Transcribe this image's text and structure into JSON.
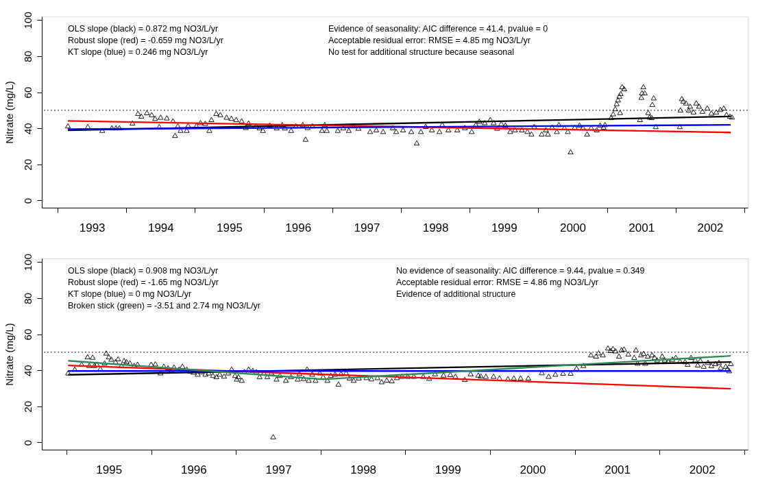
{
  "chart_data": [
    {
      "type": "scatter",
      "ylabel": "Nitrate (mg/L)",
      "annotations": [
        "OLS slope (black) = 0.872 mg NO3/L/yr",
        "Robust slope (red) = -0.659 mg NO3/L/yr",
        "KT slope (blue) = 0.246 mg NO3/L/yr",
        "Evidence of seasonality: AIC difference = 41.4, pvalue = 0",
        "Acceptable residual error: RMSE = 4.85 mg NO3/L/yr",
        "No test for additional structure because seasonal"
      ],
      "xlim": [
        1992.77,
        2003.05
      ],
      "ylim": [
        -4,
        102
      ],
      "xticks": [
        {
          "value": 1993,
          "label": null
        },
        {
          "value": 1994,
          "label": null
        },
        {
          "value": 1995,
          "label": null
        },
        {
          "value": 1996,
          "label": null
        },
        {
          "value": 1997,
          "label": null
        },
        {
          "value": 1998,
          "label": null
        },
        {
          "value": 1999,
          "label": null
        },
        {
          "value": 2000,
          "label": null
        },
        {
          "value": 2001,
          "label": null
        },
        {
          "value": 2002,
          "label": null
        },
        {
          "value": 2003,
          "label": null
        },
        {
          "value": 1993.5,
          "label": "1993"
        },
        {
          "value": 1994.5,
          "label": "1994"
        },
        {
          "value": 1995.5,
          "label": "1995"
        },
        {
          "value": 1996.5,
          "label": "1996"
        },
        {
          "value": 1997.5,
          "label": "1997"
        },
        {
          "value": 1998.5,
          "label": "1998"
        },
        {
          "value": 1999.5,
          "label": "1999"
        },
        {
          "value": 2000.5,
          "label": "2000"
        },
        {
          "value": 2001.5,
          "label": "2001"
        },
        {
          "value": 2002.5,
          "label": "2002"
        }
      ],
      "yticks": [
        0,
        20,
        40,
        60,
        80,
        100
      ],
      "ref_lines": [
        {
          "axis": "y",
          "value": 50,
          "line_style": "dotted",
          "color": "#000000"
        }
      ],
      "series": [
        {
          "type": "scatter",
          "marker": "triangle",
          "color": "#000000",
          "x": [
            1993.15,
            1993.44,
            1993.65,
            1993.79,
            1993.85,
            1993.9,
            1994.09,
            1994.17,
            1994.22,
            1994.3,
            1994.37,
            1994.42,
            1994.48,
            1994.5,
            1994.59,
            1994.68,
            1994.71,
            1994.75,
            1994.79,
            1994.88,
            1994.9,
            1995.02,
            1995.08,
            1995.15,
            1995.21,
            1995.24,
            1995.31,
            1995.37,
            1995.46,
            1995.53,
            1995.6,
            1995.68,
            1995.74,
            1995.78,
            1995.89,
            1995.94,
            1995.99,
            1996.09,
            1996.19,
            1996.27,
            1996.31,
            1996.4,
            1996.47,
            1996.57,
            1996.61,
            1996.64,
            1996.71,
            1996.85,
            1996.89,
            1996.92,
            1997.08,
            1997.16,
            1997.24,
            1997.31,
            1997.38,
            1997.55,
            1997.64,
            1997.74,
            1997.88,
            1997.93,
            1998.03,
            1998.15,
            1998.23,
            1998.29,
            1998.36,
            1998.45,
            1998.56,
            1998.6,
            1998.69,
            1998.82,
            1998.93,
            1999.03,
            1999.09,
            1999.14,
            1999.22,
            1999.3,
            1999.35,
            1999.4,
            1999.46,
            1999.52,
            1999.59,
            1999.66,
            1999.76,
            1999.84,
            1999.9,
            1999.94,
            2000.05,
            2000.11,
            2000.14,
            2000.2,
            2000.27,
            2000.3,
            2000.38,
            2000.43,
            2000.47,
            2000.53,
            2000.6,
            2000.65,
            2000.71,
            2000.77,
            2000.85,
            2000.9,
            2000.95,
            2000.97,
            2001.06,
            2001.09,
            2001.12,
            2001.14,
            2001.16,
            2001.18,
            2001.19,
            2001.2,
            2001.22,
            2001.25,
            2001.48,
            2001.5,
            2001.51,
            2001.53,
            2001.55,
            2001.6,
            2001.62,
            2001.65,
            2001.66,
            2001.68,
            2001.71,
            2002.06,
            2002.07,
            2002.09,
            2002.11,
            2002.15,
            2002.19,
            2002.21,
            2002.26,
            2002.3,
            2002.34,
            2002.39,
            2002.46,
            2002.52,
            2002.59,
            2002.65,
            2002.7,
            2002.74,
            2002.79,
            2002.82
          ],
          "values": [
            41.4,
            41.0,
            38.9,
            40.3,
            40.3,
            40.3,
            43.0,
            48.3,
            46.8,
            48.7,
            47.6,
            45.6,
            41.0,
            46.2,
            45.8,
            44.2,
            36.1,
            41.4,
            38.9,
            38.9,
            41.6,
            41.4,
            43.2,
            42.8,
            38.9,
            44.9,
            48.3,
            47.6,
            46.2,
            45.6,
            44.9,
            44.2,
            40.5,
            43.0,
            41.4,
            40.3,
            38.9,
            41.8,
            40.3,
            42.1,
            40.3,
            38.9,
            41.4,
            42.1,
            34.0,
            40.5,
            41.4,
            38.9,
            42.1,
            38.9,
            38.9,
            40.3,
            38.9,
            41.4,
            40.1,
            38.3,
            39.2,
            38.3,
            40.4,
            38.3,
            39.2,
            38.3,
            31.9,
            38.3,
            41.1,
            39.2,
            38.3,
            42.1,
            39.2,
            39.2,
            40.4,
            38.3,
            42.1,
            43.9,
            43.2,
            44.9,
            43.2,
            40.1,
            42.6,
            41.8,
            38.3,
            39.2,
            39.2,
            38.3,
            36.9,
            41.1,
            36.9,
            39.2,
            36.9,
            40.7,
            38.3,
            42.1,
            40.4,
            38.3,
            27.0,
            40.7,
            41.8,
            40.4,
            36.9,
            40.4,
            39.2,
            41.8,
            40.7,
            42.1,
            46.0,
            48.1,
            50.9,
            53.7,
            55.8,
            57.9,
            48.8,
            59.3,
            63.1,
            62.0,
            44.9,
            57.2,
            59.7,
            63.1,
            59.7,
            48.8,
            46.3,
            46.0,
            53.3,
            56.9,
            41.0,
            41.0,
            50.2,
            56.5,
            55.1,
            54.1,
            50.2,
            52.3,
            49.1,
            54.1,
            52.3,
            49.5,
            51.3,
            48.5,
            49.1,
            50.5,
            51.3,
            47.7,
            46.7,
            46.3
          ]
        },
        {
          "type": "line",
          "color": "#000000",
          "x": [
            1993.15,
            2002.8
          ],
          "values": [
            38.9,
            46.6
          ]
        },
        {
          "type": "line",
          "color": "#ff0000",
          "x": [
            1993.15,
            2002.8
          ],
          "values": [
            44.1,
            37.7
          ]
        },
        {
          "type": "line",
          "color": "#0000ff",
          "x": [
            1993.15,
            2002.8
          ],
          "values": [
            39.5,
            41.9
          ]
        }
      ]
    },
    {
      "type": "scatter",
      "ylabel": "Nitrate (mg/L)",
      "annotations": [
        "OLS slope (black) = 0.908 mg NO3/L/yr",
        "Robust slope (red) = -1.65 mg NO3/L/yr",
        "KT slope (blue) = 0 mg NO3/L/yr",
        "Broken stick (green) = -3.51 and 2.74 mg NO3/L/yr",
        "No evidence of seasonality: AIC difference = 9.44, pvalue = 0.349",
        "Acceptable residual error: RMSE = 4.86 mg NO3/L/yr",
        "Evidence of additional structure"
      ],
      "xlim": [
        1994.71,
        2003.04
      ],
      "ylim": [
        -4,
        102
      ],
      "xticks": [
        {
          "value": 1995,
          "label": null
        },
        {
          "value": 1996,
          "label": null
        },
        {
          "value": 1997,
          "label": null
        },
        {
          "value": 1998,
          "label": null
        },
        {
          "value": 1999,
          "label": null
        },
        {
          "value": 2000,
          "label": null
        },
        {
          "value": 2001,
          "label": null
        },
        {
          "value": 2002,
          "label": null
        },
        {
          "value": 2003,
          "label": null
        },
        {
          "value": 1995.5,
          "label": "1995"
        },
        {
          "value": 1996.5,
          "label": "1996"
        },
        {
          "value": 1997.5,
          "label": "1997"
        },
        {
          "value": 1998.5,
          "label": "1998"
        },
        {
          "value": 1999.5,
          "label": "1999"
        },
        {
          "value": 2000.5,
          "label": "2000"
        },
        {
          "value": 2001.5,
          "label": "2001"
        },
        {
          "value": 2002.5,
          "label": "2002"
        }
      ],
      "yticks": [
        0,
        20,
        40,
        60,
        80,
        100
      ],
      "ref_lines": [
        {
          "axis": "y",
          "value": 50,
          "line_style": "dotted",
          "color": "#000000"
        }
      ],
      "series": [
        {
          "type": "scatter",
          "marker": "triangle",
          "color": "#000000",
          "x": [
            1995.02,
            1995.1,
            1995.18,
            1995.25,
            1995.27,
            1995.31,
            1995.33,
            1995.36,
            1995.4,
            1995.45,
            1995.47,
            1995.5,
            1995.53,
            1995.58,
            1995.61,
            1995.65,
            1995.68,
            1995.71,
            1995.75,
            1995.8,
            1995.84,
            1996.0,
            1996.05,
            1996.11,
            1996.15,
            1996.2,
            1996.24,
            1996.27,
            1996.33,
            1996.37,
            1996.42,
            1996.46,
            1996.5,
            1996.55,
            1996.59,
            1996.64,
            1996.68,
            1996.73,
            1996.77,
            1996.81,
            1996.86,
            1996.91,
            1996.95,
            1996.99,
            1997.01,
            1997.03,
            1997.07,
            1997.1,
            1997.15,
            1997.2,
            1997.24,
            1997.28,
            1997.33,
            1997.37,
            1997.42,
            1997.44,
            1997.48,
            1997.52,
            1997.59,
            1997.65,
            1997.73,
            1997.75,
            1997.8,
            1997.84,
            1997.86,
            1997.9,
            1997.94,
            1997.99,
            1998.03,
            1998.08,
            1998.12,
            1998.17,
            1998.21,
            1998.24,
            1998.3,
            1998.34,
            1998.39,
            1998.45,
            1998.54,
            1998.6,
            1998.67,
            1998.72,
            1998.78,
            1998.84,
            1998.9,
            1998.96,
            1999.03,
            1999.1,
            1999.21,
            1999.28,
            1999.35,
            1999.45,
            1999.53,
            1999.59,
            1999.7,
            1999.77,
            1999.86,
            1999.89,
            1999.95,
            2000.04,
            2000.11,
            2000.21,
            2000.28,
            2000.36,
            2000.45,
            2000.61,
            2000.69,
            2000.77,
            2000.86,
            2000.95,
            2001.02,
            2001.1,
            2001.19,
            2001.25,
            2001.28,
            2001.33,
            2001.39,
            2001.42,
            2001.45,
            2001.48,
            2001.52,
            2001.55,
            2001.58,
            2001.63,
            2001.7,
            2001.72,
            2001.74,
            2001.78,
            2001.81,
            2001.83,
            2001.86,
            2001.91,
            2001.94,
            2001.97,
            2002.03,
            2002.06,
            2002.1,
            2002.15,
            2002.19,
            2002.24,
            2002.3,
            2002.33,
            2002.37,
            2002.42,
            2002.45,
            2002.48,
            2002.52,
            2002.57,
            2002.61,
            2002.66,
            2002.7,
            2002.72,
            2002.78,
            2002.8,
            2002.82,
            2002.84
          ],
          "values": [
            38.6,
            40.7,
            43.4,
            47.5,
            42.7,
            47.3,
            42.7,
            43.4,
            40.9,
            44.1,
            49.6,
            47.5,
            46.2,
            44.8,
            46.4,
            42.7,
            45.5,
            44.8,
            44.1,
            42.7,
            43.4,
            43.4,
            43.6,
            38.6,
            42.3,
            41.4,
            39.6,
            41.8,
            40.7,
            42.3,
            40.7,
            39.6,
            39.0,
            37.9,
            39.3,
            37.9,
            38.6,
            37.2,
            36.5,
            37.9,
            36.8,
            38.6,
            40.7,
            37.2,
            35.2,
            36.5,
            34.5,
            39.3,
            40.7,
            40.0,
            39.3,
            36.5,
            38.6,
            36.5,
            38.6,
            3.2,
            35.2,
            37.2,
            34.5,
            36.5,
            35.2,
            38.2,
            35.5,
            40.7,
            34.5,
            37.9,
            34.5,
            38.6,
            36.5,
            34.5,
            37.2,
            37.9,
            32.4,
            38.2,
            38.6,
            35.8,
            34.5,
            35.8,
            36.0,
            35.3,
            36.0,
            33.7,
            34.6,
            34.2,
            36.0,
            36.7,
            36.7,
            36.7,
            36.7,
            35.6,
            38.1,
            37.4,
            37.7,
            36.7,
            35.0,
            38.1,
            37.4,
            36.9,
            36.7,
            36.7,
            35.8,
            35.4,
            35.8,
            35.8,
            35.8,
            38.7,
            36.7,
            37.9,
            38.4,
            38.4,
            41.2,
            42.7,
            48.6,
            47.9,
            49.7,
            48.6,
            52.4,
            51.0,
            52.1,
            50.8,
            47.9,
            51.4,
            51.8,
            49.1,
            47.2,
            51.4,
            44.0,
            48.6,
            49.4,
            44.0,
            47.9,
            48.6,
            47.2,
            45.8,
            47.9,
            45.8,
            45.1,
            46.2,
            47.2,
            45.1,
            44.8,
            43.4,
            47.2,
            45.8,
            43.0,
            45.5,
            42.3,
            44.4,
            42.6,
            43.8,
            44.4,
            41.6,
            42.3,
            40.9,
            39.8,
            43.8
          ]
        },
        {
          "type": "line",
          "color": "#000000",
          "x": [
            1995.02,
            2002.84
          ],
          "values": [
            37.5,
            44.6
          ]
        },
        {
          "type": "line",
          "color": "#ff0000",
          "x": [
            1995.02,
            2002.84
          ],
          "values": [
            42.7,
            29.8
          ]
        },
        {
          "type": "line",
          "color": "#0000ff",
          "x": [
            1995.02,
            2002.84
          ],
          "values": [
            39.6,
            39.6
          ]
        },
        {
          "type": "line",
          "color": "#2e8b57",
          "x": [
            1995.02,
            1998.03,
            2002.84
          ],
          "values": [
            45.3,
            35.0,
            48.0
          ]
        }
      ]
    }
  ]
}
